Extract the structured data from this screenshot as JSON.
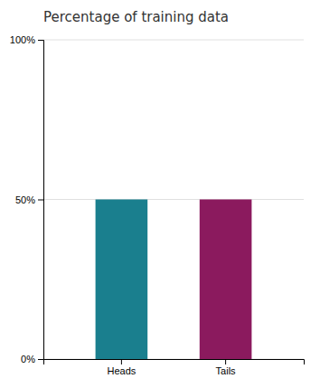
{
  "chart_data": {
    "type": "bar",
    "title": "Percentage of training data",
    "categories": [
      "Heads",
      "Tails"
    ],
    "values": [
      0.5,
      0.5
    ],
    "colors": [
      "#1a7f8e",
      "#8b1a5e"
    ],
    "ylim": [
      0,
      1
    ],
    "yticks": [
      {
        "value": 0,
        "label": "0%"
      },
      {
        "value": 0.5,
        "label": "50%"
      },
      {
        "value": 1.0,
        "label": "100%"
      }
    ],
    "grid": true
  }
}
